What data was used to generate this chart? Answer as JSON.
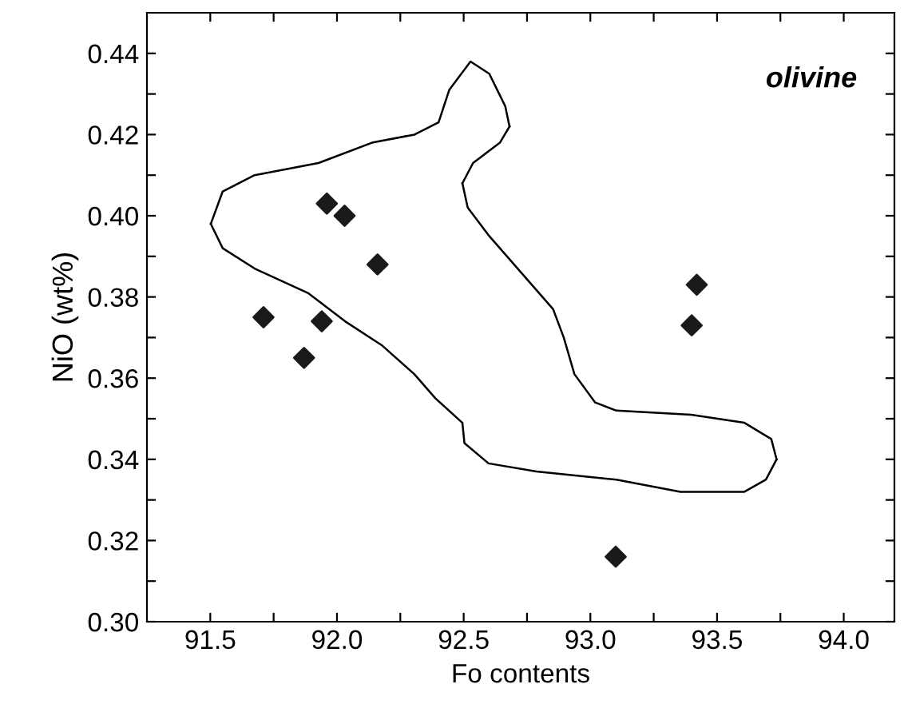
{
  "chart_data": {
    "type": "scatter",
    "xlabel": "Fo contents",
    "ylabel": "NiO (wt%)",
    "annotations": [
      "olivine"
    ],
    "xlim": [
      91.25,
      94.2
    ],
    "ylim": [
      0.3,
      0.45
    ],
    "xticks": [
      {
        "value": 91.5,
        "label": "91.5"
      },
      {
        "value": 91.75,
        "label": null
      },
      {
        "value": 92.0,
        "label": "92.0"
      },
      {
        "value": 92.25,
        "label": null
      },
      {
        "value": 92.5,
        "label": "92.5"
      },
      {
        "value": 92.75,
        "label": null
      },
      {
        "value": 93.0,
        "label": "93.0"
      },
      {
        "value": 93.25,
        "label": null
      },
      {
        "value": 93.5,
        "label": "93.5"
      },
      {
        "value": 93.75,
        "label": null
      },
      {
        "value": 94.0,
        "label": "94.0"
      }
    ],
    "yticks": [
      {
        "value": 0.3,
        "label": "0.30"
      },
      {
        "value": 0.31,
        "label": null
      },
      {
        "value": 0.32,
        "label": "0.32"
      },
      {
        "value": 0.33,
        "label": null
      },
      {
        "value": 0.34,
        "label": "0.34"
      },
      {
        "value": 0.35,
        "label": null
      },
      {
        "value": 0.36,
        "label": "0.36"
      },
      {
        "value": 0.37,
        "label": null
      },
      {
        "value": 0.38,
        "label": "0.38"
      },
      {
        "value": 0.39,
        "label": null
      },
      {
        "value": 0.4,
        "label": "0.40"
      },
      {
        "value": 0.41,
        "label": null
      },
      {
        "value": 0.42,
        "label": "0.42"
      },
      {
        "value": 0.43,
        "label": null
      },
      {
        "value": 0.44,
        "label": "0.44"
      }
    ],
    "grid": false,
    "legend": false,
    "series": [
      {
        "type": "line",
        "color": "#000000",
        "marker": "none",
        "line_style": "solid",
        "x": [
          91.502,
          91.549,
          91.675,
          91.927,
          92.138,
          92.306,
          92.401,
          92.443,
          92.527,
          92.601,
          92.664,
          92.681
        ],
        "values": [
          0.398,
          0.406,
          0.41,
          0.413,
          0.418,
          0.42,
          0.423,
          0.431,
          0.438,
          0.435,
          0.427,
          0.422
        ]
      },
      {
        "type": "line",
        "color": "#000000",
        "marker": "none",
        "line_style": "solid",
        "x": [
          92.681,
          92.643,
          92.537,
          92.495
        ],
        "values": [
          0.422,
          0.418,
          0.413,
          0.408
        ]
      },
      {
        "type": "line",
        "color": "#000000",
        "marker": "none",
        "line_style": "solid",
        "x": [
          92.495,
          92.516,
          92.601,
          92.727,
          92.853,
          92.895,
          92.937,
          93.019,
          93.103,
          93.398,
          93.608,
          93.714,
          93.735
        ],
        "values": [
          0.408,
          0.402,
          0.395,
          0.386,
          0.377,
          0.37,
          0.361,
          0.354,
          0.352,
          0.351,
          0.349,
          0.345,
          0.34
        ]
      },
      {
        "type": "line",
        "color": "#000000",
        "marker": "none",
        "line_style": "solid",
        "x": [
          93.735,
          93.693,
          93.608,
          93.356,
          93.103,
          92.787,
          92.598,
          92.503,
          92.495,
          92.389,
          92.305,
          92.179,
          92.032,
          91.885,
          91.675,
          91.549,
          91.502
        ],
        "values": [
          0.34,
          0.335,
          0.332,
          0.332,
          0.335,
          0.337,
          0.339,
          0.344,
          0.349,
          0.355,
          0.361,
          0.368,
          0.374,
          0.381,
          0.387,
          0.392,
          0.398
        ]
      },
      {
        "color": "#1a1a1a",
        "marker": "diamond",
        "x": [
          91.96,
          92.03,
          92.16,
          91.71,
          91.94,
          91.87,
          93.42,
          93.4,
          93.1
        ],
        "values": [
          0.403,
          0.4,
          0.388,
          0.375,
          0.374,
          0.365,
          0.383,
          0.373,
          0.316
        ]
      }
    ]
  }
}
